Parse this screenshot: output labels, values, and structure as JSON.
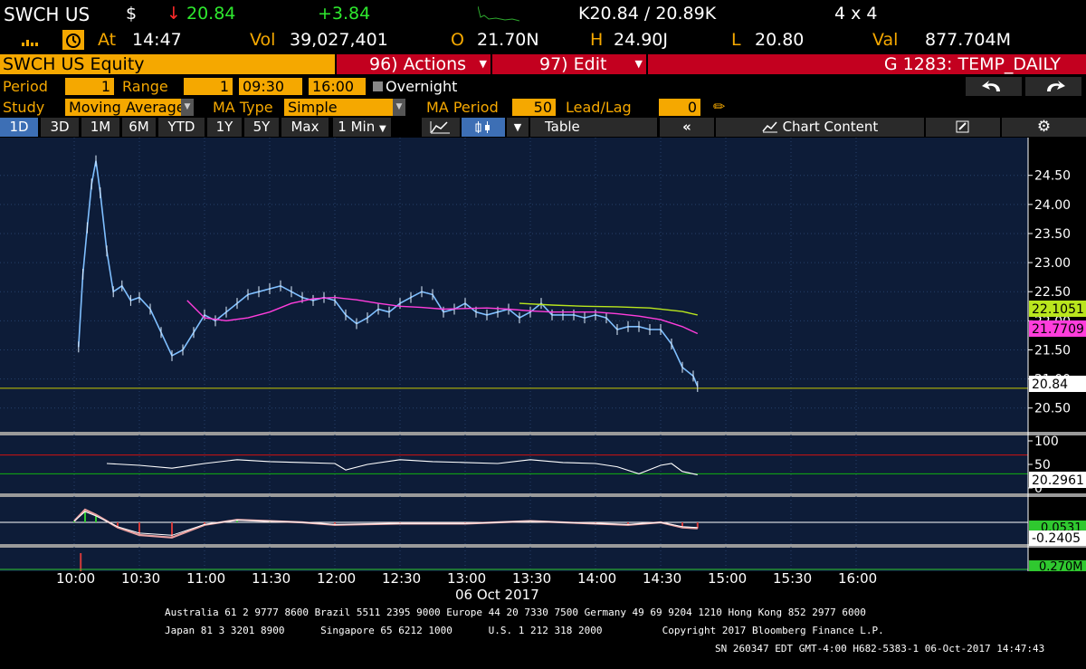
{
  "quote": {
    "ticker": "SWCH US",
    "currency_symbol": "$",
    "down_arrow": "↓",
    "last": "20.84",
    "change": "+3.84",
    "bid_ask": "K20.84 / 20.89K",
    "size": "4 x 4",
    "at_label": "At",
    "time": "14:47",
    "vol_label": "Vol",
    "volume": "39,027,401",
    "open_label": "O",
    "open": "21.70N",
    "high_label": "H",
    "high": "24.90J",
    "low_label": "L",
    "low": "20.80",
    "val_label": "Val",
    "value": "877.704M"
  },
  "security_bar": {
    "security": "SWCH US Equity",
    "actions": "96) Actions",
    "edit": "97) Edit",
    "template": "G 1283: TEMP_DAILY"
  },
  "settings": {
    "period_label": "Period",
    "period": "1",
    "range_label": "Range",
    "range": "1",
    "time_from": "09:30",
    "time_to": "16:00",
    "overnight_label": "Overnight",
    "study_label": "Study",
    "study": "Moving Average",
    "ma_type_label": "MA Type",
    "ma_type": "Simple",
    "ma_period_label": "MA Period",
    "ma_period": "50",
    "lead_lag_label": "Lead/Lag",
    "lead_lag": "0"
  },
  "toolbar": {
    "ranges": [
      "1D",
      "3D",
      "1M",
      "6M",
      "YTD",
      "1Y",
      "5Y",
      "Max"
    ],
    "selected": "1D",
    "interval": "1 Min",
    "table": "Table",
    "collapse": "«",
    "chart_content": "Chart Content"
  },
  "colors": {
    "panel_bg": "#0d1c38",
    "price": "#7fbfff",
    "ma": "#ff3ddc",
    "ma_alt": "#b9e61d",
    "reference": "#c8c800",
    "rsi_upper": "#d01010",
    "rsi_lower": "#10b010",
    "amber": "#f5a800"
  },
  "chart_data": [
    {
      "type": "line",
      "panel": "price",
      "x_unit": "time",
      "x_ticks": [
        "10:00",
        "10:30",
        "11:00",
        "11:30",
        "12:00",
        "12:30",
        "13:00",
        "13:30",
        "14:00",
        "14:30",
        "15:00",
        "15:30",
        "16:00"
      ],
      "date_label": "06 Oct 2017",
      "y_ticks": [
        "24.50",
        "24.00",
        "23.50",
        "23.00",
        "22.50",
        "22.00",
        "21.50",
        "21.00",
        "20.50"
      ],
      "ylim": [
        20.2,
        24.9
      ],
      "series": [
        {
          "key": "price",
          "x": [
            "10:02",
            "10:04",
            "10:06",
            "10:08",
            "10:10",
            "10:12",
            "10:15",
            "10:18",
            "10:22",
            "10:26",
            "10:30",
            "10:35",
            "10:40",
            "10:45",
            "10:50",
            "10:55",
            "11:00",
            "11:05",
            "11:10",
            "11:15",
            "11:20",
            "11:25",
            "11:30",
            "11:35",
            "11:40",
            "11:45",
            "11:50",
            "11:55",
            "12:00",
            "12:05",
            "12:10",
            "12:15",
            "12:20",
            "12:25",
            "12:30",
            "12:35",
            "12:40",
            "12:45",
            "12:50",
            "12:55",
            "13:00",
            "13:05",
            "13:10",
            "13:15",
            "13:20",
            "13:25",
            "13:30",
            "13:35",
            "13:40",
            "13:45",
            "13:50",
            "13:55",
            "14:00",
            "14:05",
            "14:10",
            "14:15",
            "14:20",
            "14:25",
            "14:30",
            "14:35",
            "14:40",
            "14:45",
            "14:47"
          ],
          "values": [
            21.55,
            22.8,
            23.6,
            24.35,
            24.75,
            24.2,
            23.2,
            22.5,
            22.6,
            22.35,
            22.4,
            22.2,
            21.8,
            21.4,
            21.5,
            21.8,
            22.1,
            22.0,
            22.15,
            22.3,
            22.45,
            22.5,
            22.55,
            22.6,
            22.5,
            22.4,
            22.35,
            22.4,
            22.35,
            22.1,
            21.95,
            22.05,
            22.2,
            22.15,
            22.3,
            22.4,
            22.5,
            22.45,
            22.15,
            22.2,
            22.3,
            22.15,
            22.1,
            22.15,
            22.2,
            22.05,
            22.15,
            22.3,
            22.1,
            22.1,
            22.1,
            22.05,
            22.1,
            22.05,
            21.85,
            21.9,
            21.9,
            21.85,
            21.85,
            21.6,
            21.2,
            21.05,
            20.87
          ]
        },
        {
          "key": "ma",
          "x": [
            "10:52",
            "11:00",
            "11:10",
            "11:20",
            "11:30",
            "11:40",
            "11:50",
            "12:00",
            "12:10",
            "12:20",
            "12:30",
            "12:40",
            "12:50",
            "13:00",
            "13:10",
            "13:20",
            "13:30",
            "13:40",
            "13:50",
            "14:00",
            "14:10",
            "14:20",
            "14:30",
            "14:40",
            "14:47"
          ],
          "values": [
            22.35,
            22.05,
            22.0,
            22.05,
            22.15,
            22.3,
            22.38,
            22.4,
            22.36,
            22.3,
            22.25,
            22.23,
            22.2,
            22.21,
            22.22,
            22.2,
            22.17,
            22.15,
            22.15,
            22.15,
            22.12,
            22.08,
            22.02,
            21.9,
            21.78
          ]
        },
        {
          "key": "ma_alt",
          "x": [
            "13:25",
            "13:40",
            "13:55",
            "14:10",
            "14:25",
            "14:40",
            "14:47"
          ],
          "values": [
            22.3,
            22.27,
            22.25,
            22.24,
            22.22,
            22.16,
            22.1
          ]
        }
      ],
      "price_tags": [
        "22.1051",
        "21.7709",
        "20.84"
      ]
    },
    {
      "type": "line",
      "panel": "rsi",
      "y_ticks": [
        "100",
        "50",
        "0"
      ],
      "ylim": [
        0,
        100
      ],
      "series": [
        {
          "key": "rsi",
          "x": [
            "10:15",
            "10:30",
            "10:45",
            "11:00",
            "11:15",
            "11:30",
            "11:45",
            "12:00",
            "12:05",
            "12:15",
            "12:30",
            "12:45",
            "13:00",
            "13:15",
            "13:30",
            "13:45",
            "14:00",
            "14:10",
            "14:20",
            "14:30",
            "14:35",
            "14:40",
            "14:45",
            "14:47"
          ],
          "values": [
            52,
            48,
            42,
            52,
            60,
            56,
            54,
            52,
            38,
            50,
            60,
            56,
            54,
            52,
            60,
            54,
            52,
            45,
            30,
            48,
            52,
            35,
            30,
            28
          ]
        }
      ],
      "value_tag": "20.2961"
    },
    {
      "type": "line",
      "panel": "macd",
      "series": [
        {
          "key": "macd",
          "x": [
            "10:00",
            "10:05",
            "10:10",
            "10:20",
            "10:30",
            "10:45",
            "11:00",
            "11:15",
            "11:30",
            "11:45",
            "12:00",
            "12:30",
            "13:00",
            "13:30",
            "14:00",
            "14:15",
            "14:30",
            "14:40",
            "14:47"
          ],
          "values": [
            0.05,
            0.5,
            0.3,
            -0.2,
            -0.5,
            -0.6,
            -0.1,
            0.1,
            0.05,
            0.0,
            -0.1,
            -0.05,
            -0.05,
            0.05,
            -0.05,
            -0.1,
            0.0,
            -0.2,
            -0.24
          ]
        }
      ],
      "value_tags": [
        "0.0531",
        "-0.2405"
      ]
    },
    {
      "type": "bar",
      "panel": "volume",
      "value_tag": "0.270M"
    }
  ],
  "footer": {
    "line1": "Australia 61 2 9777 8600 Brazil 5511 2395 9000 Europe 44 20 7330 7500 Germany 49 69 9204 1210 Hong Kong 852 2977 6000",
    "line2": "Japan 81 3 3201 8900      Singapore 65 6212 1000      U.S. 1 212 318 2000          Copyright 2017 Bloomberg Finance L.P.",
    "line3": "SN 260347 EDT  GMT-4:00 H682-5383-1 06-Oct-2017 14:47:43"
  }
}
